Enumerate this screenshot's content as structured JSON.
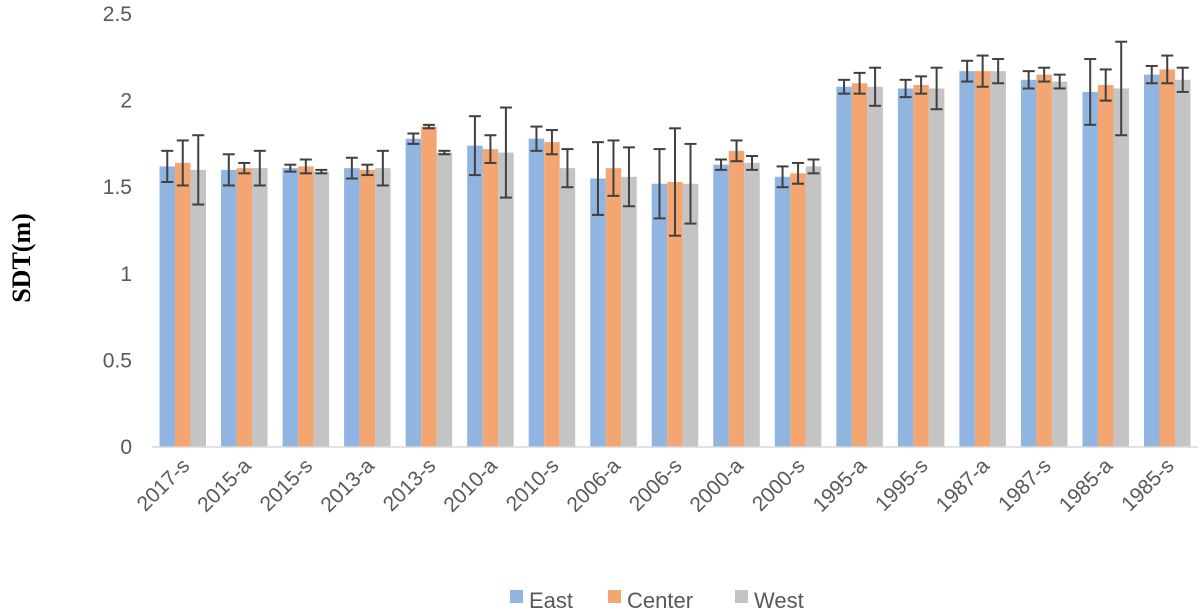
{
  "chart_data": {
    "type": "bar",
    "title": "",
    "xlabel": "",
    "ylabel": "SDT(m)",
    "ylim": [
      0,
      2.5
    ],
    "yticks": [
      "0",
      "0.5",
      "1",
      "1.5",
      "2",
      "2.5"
    ],
    "grid": false,
    "legend_position": "bottom",
    "categories": [
      "2017-s",
      "2015-a",
      "2015-s",
      "2013-a",
      "2013-s",
      "2010-a",
      "2010-s",
      "2006-a",
      "2006-s",
      "2000-a",
      "2000-s",
      "1995-a",
      "1995-s",
      "1987-a",
      "1987-s",
      "1985-a",
      "1985-s"
    ],
    "series": [
      {
        "name": "East",
        "color": "#8FB5E0",
        "values": [
          1.62,
          1.6,
          1.61,
          1.61,
          1.78,
          1.74,
          1.78,
          1.55,
          1.52,
          1.63,
          1.56,
          2.08,
          2.07,
          2.17,
          2.12,
          2.05,
          2.15
        ],
        "errors": [
          0.09,
          0.09,
          0.02,
          0.06,
          0.03,
          0.17,
          0.07,
          0.21,
          0.2,
          0.03,
          0.06,
          0.04,
          0.05,
          0.06,
          0.05,
          0.19,
          0.05
        ]
      },
      {
        "name": "Center",
        "color": "#F4A672",
        "values": [
          1.64,
          1.61,
          1.62,
          1.6,
          1.85,
          1.72,
          1.76,
          1.61,
          1.53,
          1.71,
          1.58,
          2.1,
          2.09,
          2.17,
          2.15,
          2.09,
          2.18
        ],
        "errors": [
          0.13,
          0.03,
          0.04,
          0.03,
          0.01,
          0.08,
          0.07,
          0.16,
          0.31,
          0.06,
          0.06,
          0.06,
          0.05,
          0.09,
          0.04,
          0.09,
          0.08
        ]
      },
      {
        "name": "West",
        "color": "#C4C4C4",
        "values": [
          1.6,
          1.61,
          1.59,
          1.61,
          1.7,
          1.7,
          1.61,
          1.56,
          1.52,
          1.64,
          1.62,
          2.08,
          2.07,
          2.17,
          2.11,
          2.07,
          2.12
        ],
        "errors": [
          0.2,
          0.1,
          0.01,
          0.1,
          0.01,
          0.26,
          0.11,
          0.17,
          0.23,
          0.04,
          0.04,
          0.11,
          0.12,
          0.07,
          0.04,
          0.27,
          0.07
        ]
      }
    ]
  }
}
